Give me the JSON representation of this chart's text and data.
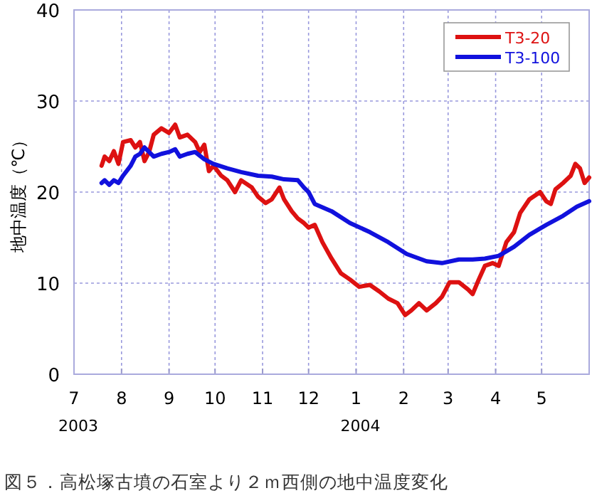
{
  "chart_data": {
    "type": "line",
    "ylabel": "地中温度（℃）",
    "xlim": [
      "2003-07-01",
      "2004-06-01"
    ],
    "xticks": [
      {
        "value": "2003-07-01",
        "label": "7\n2003"
      },
      {
        "value": "2003-08-01",
        "label": "8"
      },
      {
        "value": "2003-09-01",
        "label": "9"
      },
      {
        "value": "2003-10-01",
        "label": "10"
      },
      {
        "value": "2003-11-01",
        "label": "11"
      },
      {
        "value": "2003-12-01",
        "label": "12"
      },
      {
        "value": "2004-01-01",
        "label": "1\n2004"
      },
      {
        "value": "2004-02-01",
        "label": "2"
      },
      {
        "value": "2004-03-01",
        "label": "3"
      },
      {
        "value": "2004-04-01",
        "label": "4"
      },
      {
        "value": "2004-05-01",
        "label": "5"
      },
      {
        "value": "2004-06-01",
        "label": null
      }
    ],
    "ylim": [
      0,
      40
    ],
    "yticks": [
      0,
      10,
      20,
      30,
      40
    ],
    "grid": true,
    "legend": "top right",
    "series": [
      {
        "name": "T3-20",
        "color": "#dd1111",
        "x": [
          "2003-07-19",
          "2003-07-21",
          "2003-07-24",
          "2003-07-27",
          "2003-07-30",
          "2003-08-02",
          "2003-08-07",
          "2003-08-10",
          "2003-08-13",
          "2003-08-16",
          "2003-08-19",
          "2003-08-22",
          "2003-08-27",
          "2003-09-01",
          "2003-09-05",
          "2003-09-08",
          "2003-09-13",
          "2003-09-18",
          "2003-09-21",
          "2003-09-24",
          "2003-09-27",
          "2003-09-30",
          "2003-10-05",
          "2003-10-09",
          "2003-10-14",
          "2003-10-18",
          "2003-10-25",
          "2003-10-29",
          "2003-11-03",
          "2003-11-07",
          "2003-11-12",
          "2003-11-15",
          "2003-11-20",
          "2003-11-24",
          "2003-11-28",
          "2003-12-01",
          "2003-12-05",
          "2003-12-10",
          "2003-12-16",
          "2003-12-22",
          "2003-12-28",
          "2004-01-03",
          "2004-01-10",
          "2004-01-16",
          "2004-01-22",
          "2004-01-28",
          "2004-02-02",
          "2004-02-06",
          "2004-02-11",
          "2004-02-16",
          "2004-02-22",
          "2004-02-26",
          "2004-03-02",
          "2004-03-08",
          "2004-03-14",
          "2004-03-17",
          "2004-03-21",
          "2004-03-25",
          "2004-03-30",
          "2004-04-03",
          "2004-04-08",
          "2004-04-13",
          "2004-04-17",
          "2004-04-23",
          "2004-04-30",
          "2004-05-04",
          "2004-05-07",
          "2004-05-10",
          "2004-05-15",
          "2004-05-20",
          "2004-05-23",
          "2004-05-26",
          "2004-05-29",
          "2004-06-01"
        ],
        "values": [
          22.9,
          23.9,
          23.4,
          24.5,
          23.1,
          25.5,
          25.7,
          24.9,
          25.5,
          23.4,
          24.4,
          26.3,
          27.0,
          26.5,
          27.4,
          26.0,
          26.3,
          25.5,
          24.4,
          25.2,
          22.3,
          22.9,
          21.8,
          21.3,
          20.0,
          21.3,
          20.5,
          19.5,
          18.8,
          19.2,
          20.5,
          19.2,
          17.9,
          17.1,
          16.6,
          16.1,
          16.4,
          14.5,
          12.7,
          11.1,
          10.4,
          9.6,
          9.8,
          9.1,
          8.3,
          7.8,
          6.5,
          7.0,
          7.8,
          7.0,
          7.8,
          8.5,
          10.1,
          10.1,
          9.3,
          8.8,
          10.4,
          11.9,
          12.2,
          11.9,
          14.5,
          15.6,
          17.7,
          19.2,
          20.0,
          19.0,
          18.7,
          20.3,
          21.0,
          21.8,
          23.1,
          22.6,
          21.0,
          21.6
        ]
      },
      {
        "name": "T3-100",
        "color": "#1111dd",
        "x": [
          "2003-07-19",
          "2003-07-21",
          "2003-07-24",
          "2003-07-27",
          "2003-07-30",
          "2003-08-02",
          "2003-08-07",
          "2003-08-10",
          "2003-08-13",
          "2003-08-16",
          "2003-08-19",
          "2003-08-22",
          "2003-08-27",
          "2003-09-01",
          "2003-09-05",
          "2003-09-08",
          "2003-09-13",
          "2003-09-18",
          "2003-09-24",
          "2003-09-30",
          "2003-10-09",
          "2003-10-18",
          "2003-10-29",
          "2003-11-07",
          "2003-11-15",
          "2003-11-24",
          "2003-11-28",
          "2003-12-01",
          "2003-12-05",
          "2003-12-16",
          "2003-12-28",
          "2004-01-10",
          "2004-01-22",
          "2004-02-03",
          "2004-02-16",
          "2004-02-26",
          "2004-03-08",
          "2004-03-17",
          "2004-03-25",
          "2004-04-03",
          "2004-04-13",
          "2004-04-23",
          "2004-05-04",
          "2004-05-15",
          "2004-05-24",
          "2004-06-01"
        ],
        "values": [
          21.0,
          21.3,
          20.8,
          21.3,
          21.0,
          21.8,
          22.9,
          23.9,
          24.2,
          24.9,
          24.4,
          23.9,
          24.2,
          24.4,
          24.7,
          23.9,
          24.2,
          24.4,
          23.6,
          23.1,
          22.6,
          22.2,
          21.8,
          21.7,
          21.4,
          21.3,
          20.5,
          20.0,
          18.7,
          17.9,
          16.6,
          15.6,
          14.5,
          13.2,
          12.4,
          12.2,
          12.6,
          12.6,
          12.7,
          13.0,
          14.0,
          15.3,
          16.4,
          17.4,
          18.4,
          19.0
        ]
      }
    ],
    "annotations": [
      "図５．高松塚古墳の石室より２ｍ西側の地中温度変化"
    ]
  }
}
